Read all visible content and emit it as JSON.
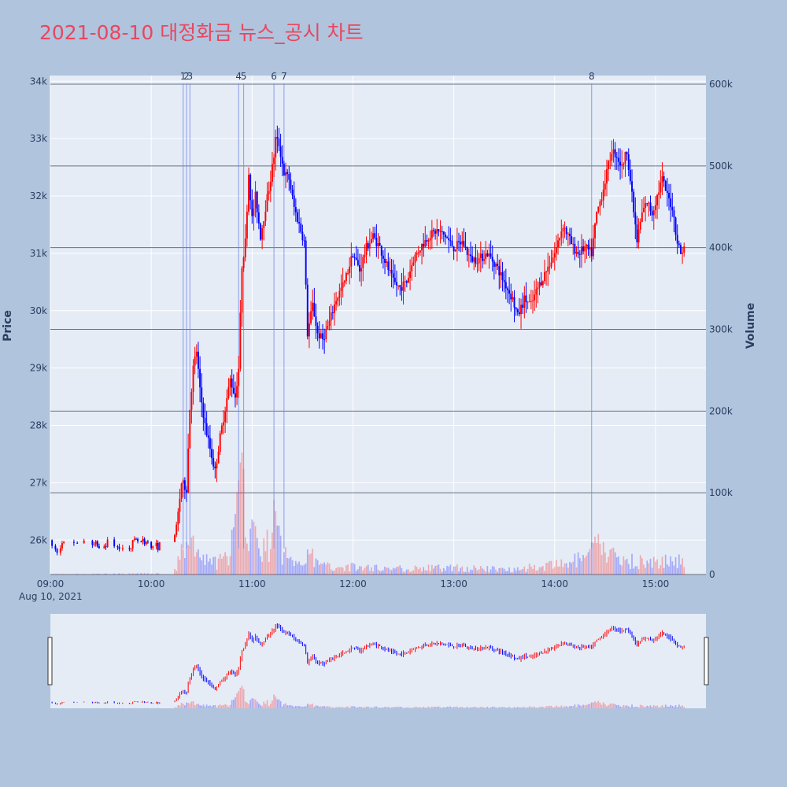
{
  "title": "2021-08-10 대정화금 뉴스_공시 차트",
  "colors": {
    "up": "#ff0000",
    "down": "#0000ff",
    "background": "#b0c4de",
    "plot_bg": "#e5ecf6",
    "title": "#e8475f"
  },
  "chart_data": {
    "type": "candlestick",
    "title": "2021-08-10 대정화금 뉴스_공시 차트",
    "date_label": "Aug 10, 2021",
    "x_ticks": [
      "09:00",
      "10:00",
      "11:00",
      "12:00",
      "13:00",
      "14:00",
      "15:00"
    ],
    "x_range": [
      "09:00",
      "15:30"
    ],
    "price_axis": {
      "label": "Price",
      "range": [
        25400,
        34100
      ],
      "ticks": [
        26000,
        27000,
        28000,
        29000,
        30000,
        31000,
        32000,
        33000,
        34000
      ],
      "tick_labels": [
        "26k",
        "27k",
        "28k",
        "29k",
        "30k",
        "31k",
        "32k",
        "33k",
        "34k"
      ]
    },
    "volume_axis": {
      "label": "Volume",
      "range": [
        0,
        600000
      ],
      "ticks": [
        0,
        100000,
        200000,
        300000,
        400000,
        500000,
        600000
      ],
      "tick_labels": [
        "0",
        "100k",
        "200k",
        "300k",
        "400k",
        "500k",
        "600k"
      ]
    },
    "news_markers": [
      {
        "label": "1",
        "time": "10:19"
      },
      {
        "label": "2",
        "time": "10:21"
      },
      {
        "label": "3",
        "time": "10:23"
      },
      {
        "label": "4",
        "time": "10:52"
      },
      {
        "label": "5",
        "time": "10:55"
      },
      {
        "label": "6",
        "time": "11:13"
      },
      {
        "label": "7",
        "time": "11:19"
      },
      {
        "label": "8",
        "time": "14:22"
      }
    ],
    "price_path": [
      [
        "09:00",
        26000
      ],
      [
        "09:03",
        25800
      ],
      [
        "09:08",
        25900
      ],
      [
        "09:15",
        25950
      ],
      [
        "09:25",
        25900
      ],
      [
        "09:35",
        25950
      ],
      [
        "09:45",
        25900
      ],
      [
        "09:55",
        26000
      ],
      [
        "10:03",
        25900
      ],
      [
        "10:09",
        25900
      ],
      [
        "10:15",
        26200
      ],
      [
        "10:18",
        27000
      ],
      [
        "10:21",
        26900
      ],
      [
        "10:23",
        28300
      ],
      [
        "10:25",
        29000
      ],
      [
        "10:27",
        29300
      ],
      [
        "10:29",
        28600
      ],
      [
        "10:32",
        28000
      ],
      [
        "10:35",
        27600
      ],
      [
        "10:38",
        27200
      ],
      [
        "10:41",
        27800
      ],
      [
        "10:44",
        28300
      ],
      [
        "10:47",
        28800
      ],
      [
        "10:50",
        28500
      ],
      [
        "10:52",
        29000
      ],
      [
        "10:54",
        30800
      ],
      [
        "10:56",
        31200
      ],
      [
        "10:58",
        32400
      ],
      [
        "11:00",
        31600
      ],
      [
        "11:02",
        32000
      ],
      [
        "11:05",
        31300
      ],
      [
        "11:08",
        31800
      ],
      [
        "11:11",
        32300
      ],
      [
        "11:13",
        32700
      ],
      [
        "11:14",
        33000
      ],
      [
        "11:16",
        32900
      ],
      [
        "11:19",
        32400
      ],
      [
        "11:22",
        32300
      ],
      [
        "11:25",
        31800
      ],
      [
        "11:28",
        31500
      ],
      [
        "11:31",
        31200
      ],
      [
        "11:33",
        29600
      ],
      [
        "11:36",
        30100
      ],
      [
        "11:39",
        29600
      ],
      [
        "11:42",
        29500
      ],
      [
        "11:46",
        29800
      ],
      [
        "11:50",
        30200
      ],
      [
        "11:55",
        30500
      ],
      [
        "12:00",
        31000
      ],
      [
        "12:04",
        30700
      ],
      [
        "12:08",
        31100
      ],
      [
        "12:12",
        31300
      ],
      [
        "12:16",
        31100
      ],
      [
        "12:20",
        30800
      ],
      [
        "12:24",
        30500
      ],
      [
        "12:28",
        30400
      ],
      [
        "12:32",
        30500
      ],
      [
        "12:36",
        30900
      ],
      [
        "12:40",
        31100
      ],
      [
        "12:45",
        31300
      ],
      [
        "12:50",
        31400
      ],
      [
        "12:55",
        31300
      ],
      [
        "13:00",
        31100
      ],
      [
        "13:05",
        31200
      ],
      [
        "13:10",
        30900
      ],
      [
        "13:15",
        30900
      ],
      [
        "13:20",
        31000
      ],
      [
        "13:25",
        30800
      ],
      [
        "13:30",
        30500
      ],
      [
        "13:35",
        30200
      ],
      [
        "13:38",
        29900
      ],
      [
        "13:42",
        30200
      ],
      [
        "13:46",
        30100
      ],
      [
        "13:50",
        30400
      ],
      [
        "13:55",
        30700
      ],
      [
        "14:00",
        31000
      ],
      [
        "14:05",
        31500
      ],
      [
        "14:08",
        31300
      ],
      [
        "14:11",
        31100
      ],
      [
        "14:14",
        31000
      ],
      [
        "14:18",
        31100
      ],
      [
        "14:22",
        31000
      ],
      [
        "14:25",
        31700
      ],
      [
        "14:28",
        32000
      ],
      [
        "14:31",
        32400
      ],
      [
        "14:34",
        32800
      ],
      [
        "14:37",
        32700
      ],
      [
        "14:40",
        32500
      ],
      [
        "14:43",
        32800
      ],
      [
        "14:46",
        32000
      ],
      [
        "14:49",
        31200
      ],
      [
        "14:52",
        31700
      ],
      [
        "14:55",
        31900
      ],
      [
        "14:58",
        31700
      ],
      [
        "15:01",
        32000
      ],
      [
        "15:04",
        32300
      ],
      [
        "15:07",
        32000
      ],
      [
        "15:10",
        31800
      ],
      [
        "15:13",
        31200
      ],
      [
        "15:15",
        31000
      ],
      [
        "15:17",
        31100
      ]
    ],
    "volume_profile": [
      [
        "09:00",
        500
      ],
      [
        "10:10",
        1500
      ],
      [
        "10:15",
        8000
      ],
      [
        "10:18",
        30000
      ],
      [
        "10:22",
        45000
      ],
      [
        "10:26",
        30000
      ],
      [
        "10:35",
        15000
      ],
      [
        "10:45",
        20000
      ],
      [
        "10:50",
        60000
      ],
      [
        "10:53",
        120000
      ],
      [
        "10:56",
        80000
      ],
      [
        "11:00",
        60000
      ],
      [
        "11:05",
        30000
      ],
      [
        "11:10",
        40000
      ],
      [
        "11:13",
        70000
      ],
      [
        "11:18",
        30000
      ],
      [
        "11:25",
        15000
      ],
      [
        "11:33",
        30000
      ],
      [
        "11:40",
        12000
      ],
      [
        "12:00",
        10000
      ],
      [
        "12:30",
        8000
      ],
      [
        "13:00",
        9000
      ],
      [
        "13:30",
        7000
      ],
      [
        "14:00",
        12000
      ],
      [
        "14:20",
        22000
      ],
      [
        "14:25",
        40000
      ],
      [
        "14:30",
        30000
      ],
      [
        "14:40",
        20000
      ],
      [
        "15:00",
        15000
      ],
      [
        "15:15",
        20000
      ],
      [
        "15:18",
        12000
      ],
      [
        "15:30",
        20000
      ]
    ]
  }
}
